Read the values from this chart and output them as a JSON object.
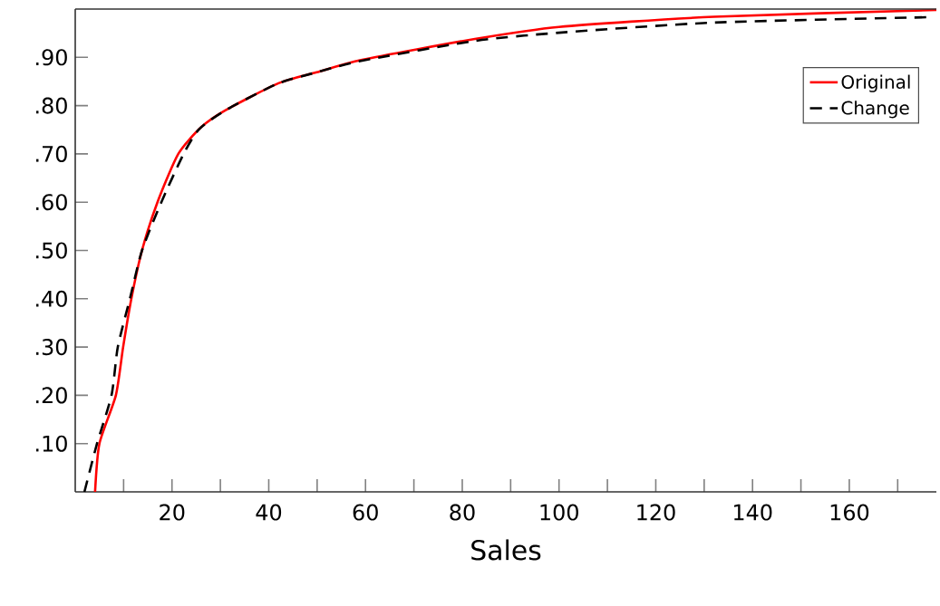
{
  "chart_data": {
    "type": "line",
    "xlabel": "Sales",
    "xlim": [
      0,
      178
    ],
    "ylim": [
      0,
      1.0
    ],
    "xticks": [
      {
        "value": 10,
        "label": null
      },
      20,
      {
        "value": 30,
        "label": null
      },
      40,
      {
        "value": 50,
        "label": null
      },
      60,
      {
        "value": 70,
        "label": null
      },
      80,
      {
        "value": 90,
        "label": null
      },
      100,
      {
        "value": 110,
        "label": null
      },
      120,
      {
        "value": 130,
        "label": null
      },
      140,
      {
        "value": 150,
        "label": null
      },
      160,
      {
        "value": 170,
        "label": null
      }
    ],
    "yticks": [
      {
        "value": 0.1,
        "label": ".10"
      },
      {
        "value": 0.2,
        "label": ".20"
      },
      {
        "value": 0.3,
        "label": ".30"
      },
      {
        "value": 0.4,
        "label": ".40"
      },
      {
        "value": 0.5,
        "label": ".50"
      },
      {
        "value": 0.6,
        "label": ".60"
      },
      {
        "value": 0.7,
        "label": ".70"
      },
      {
        "value": 0.8,
        "label": ".80"
      },
      {
        "value": 0.9,
        "label": ".90"
      }
    ],
    "legend": "top right",
    "marker": "none",
    "series": [
      {
        "name": "Original",
        "color": "#ff0000",
        "line_style": "solid",
        "x": [
          4.1,
          5.0,
          8.4,
          9.9,
          11.6,
          13.8,
          17.0,
          21.3,
          26,
          31,
          41.7,
          49.9,
          59.3,
          82.6,
          100,
          132,
          178
        ],
        "values": [
          0,
          0.1,
          0.2,
          0.3,
          0.4,
          0.5,
          0.6,
          0.7,
          0.755,
          0.79,
          0.845,
          0.869,
          0.895,
          0.938,
          0.963,
          0.984,
          0.998
        ]
      },
      {
        "name": "Change",
        "color": "#000000",
        "line_style": "dashed",
        "x": [
          1.9,
          4.5,
          7.5,
          8.8,
          11.3,
          13.8,
          17.8,
          22.4,
          25.6,
          31,
          41.7,
          49.9,
          59.3,
          82.6,
          100,
          132,
          176
        ],
        "values": [
          0,
          0.1,
          0.2,
          0.3,
          0.4,
          0.5,
          0.6,
          0.7,
          0.751,
          0.79,
          0.845,
          0.869,
          0.893,
          0.934,
          0.951,
          0.972,
          0.983
        ]
      }
    ]
  }
}
